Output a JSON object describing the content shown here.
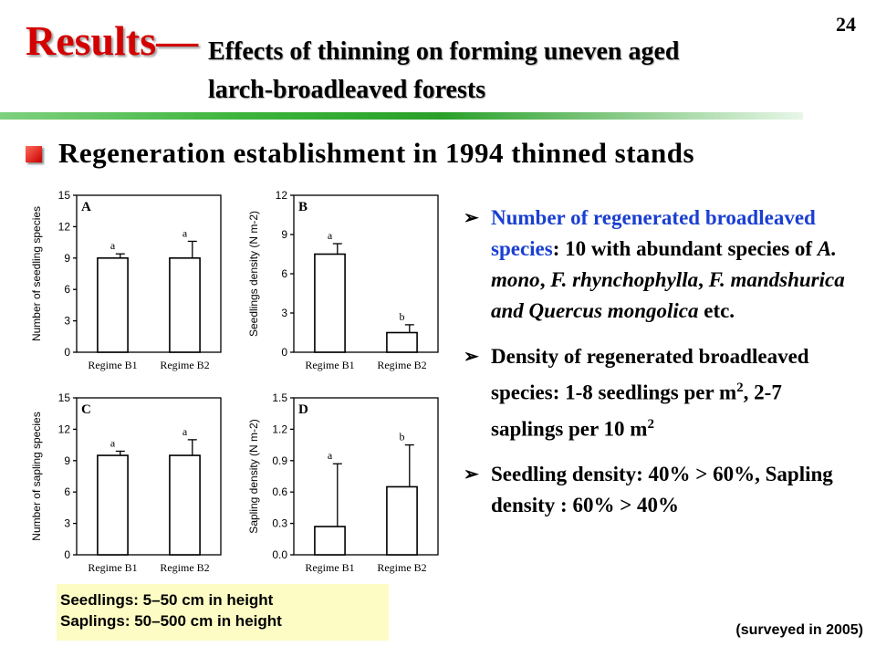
{
  "page_number": "24",
  "title": {
    "main": "Results—",
    "sub_line1": "Effects of thinning on forming uneven aged",
    "sub_line2": "larch-broadleaved forests"
  },
  "heading": "Regeneration establishment in 1994 thinned stands",
  "chart_data": [
    {
      "panel": "A",
      "type": "bar",
      "ylabel": "Number of seedling species",
      "categories": [
        "Regime B1",
        "Regime B2"
      ],
      "values": [
        9,
        9
      ],
      "errors": [
        0.4,
        1.6
      ],
      "significance": [
        "a",
        "a"
      ],
      "ylim": [
        0,
        15
      ],
      "yticks": [
        "0",
        "3",
        "6",
        "9",
        "12",
        "15"
      ]
    },
    {
      "panel": "B",
      "type": "bar",
      "ylabel": "Seedlings density (N m-2)",
      "categories": [
        "Regime B1",
        "Regime B2"
      ],
      "values": [
        7.5,
        1.5
      ],
      "errors": [
        0.8,
        0.6
      ],
      "significance": [
        "a",
        "b"
      ],
      "ylim": [
        0,
        12
      ],
      "yticks": [
        "0",
        "3",
        "6",
        "9",
        "12"
      ]
    },
    {
      "panel": "C",
      "type": "bar",
      "ylabel": "Number of sapling species",
      "categories": [
        "Regime B1",
        "Regime B2"
      ],
      "values": [
        9.5,
        9.5
      ],
      "errors": [
        0.4,
        1.5
      ],
      "significance": [
        "a",
        "a"
      ],
      "ylim": [
        0,
        15
      ],
      "yticks": [
        "0",
        "3",
        "6",
        "9",
        "12",
        "15"
      ]
    },
    {
      "panel": "D",
      "type": "bar",
      "ylabel": "Sapling density (N m-2)",
      "categories": [
        "Regime B1",
        "Regime B2"
      ],
      "values": [
        0.27,
        0.65
      ],
      "errors": [
        0.6,
        0.4
      ],
      "significance": [
        "a",
        "b"
      ],
      "ylim": [
        0,
        1.5
      ],
      "yticks": [
        "0.0",
        "0.3",
        "0.6",
        "0.9",
        "1.2",
        "1.5"
      ]
    }
  ],
  "bullets": {
    "b1_blue": "Number of regenerated broadleaved species",
    "b1_rest": ": 10 with abundant species of ",
    "b1_sp1": "A. mono",
    "b1_sep1": ", ",
    "b1_sp2": "F. rhynchophylla",
    "b1_sep2": ", ",
    "b1_sp3": "F. mandshurica and Quercus mongolica",
    "b1_end": " etc.",
    "b2_text1": "Density of regenerated broadleaved species: 1-8 seedlings per m",
    "b2_sup1": "2",
    "b2_text2": ", 2-7 saplings per 10 m",
    "b2_sup2": "2",
    "b3_text": "Seedling density: 40% > 60%, Sapling density : 60% > 40%"
  },
  "notes": {
    "line1": "Seedlings: 5–50 cm in height",
    "line2": "Saplings: 50–500 cm in height"
  },
  "survey_note": "(surveyed in 2005)"
}
